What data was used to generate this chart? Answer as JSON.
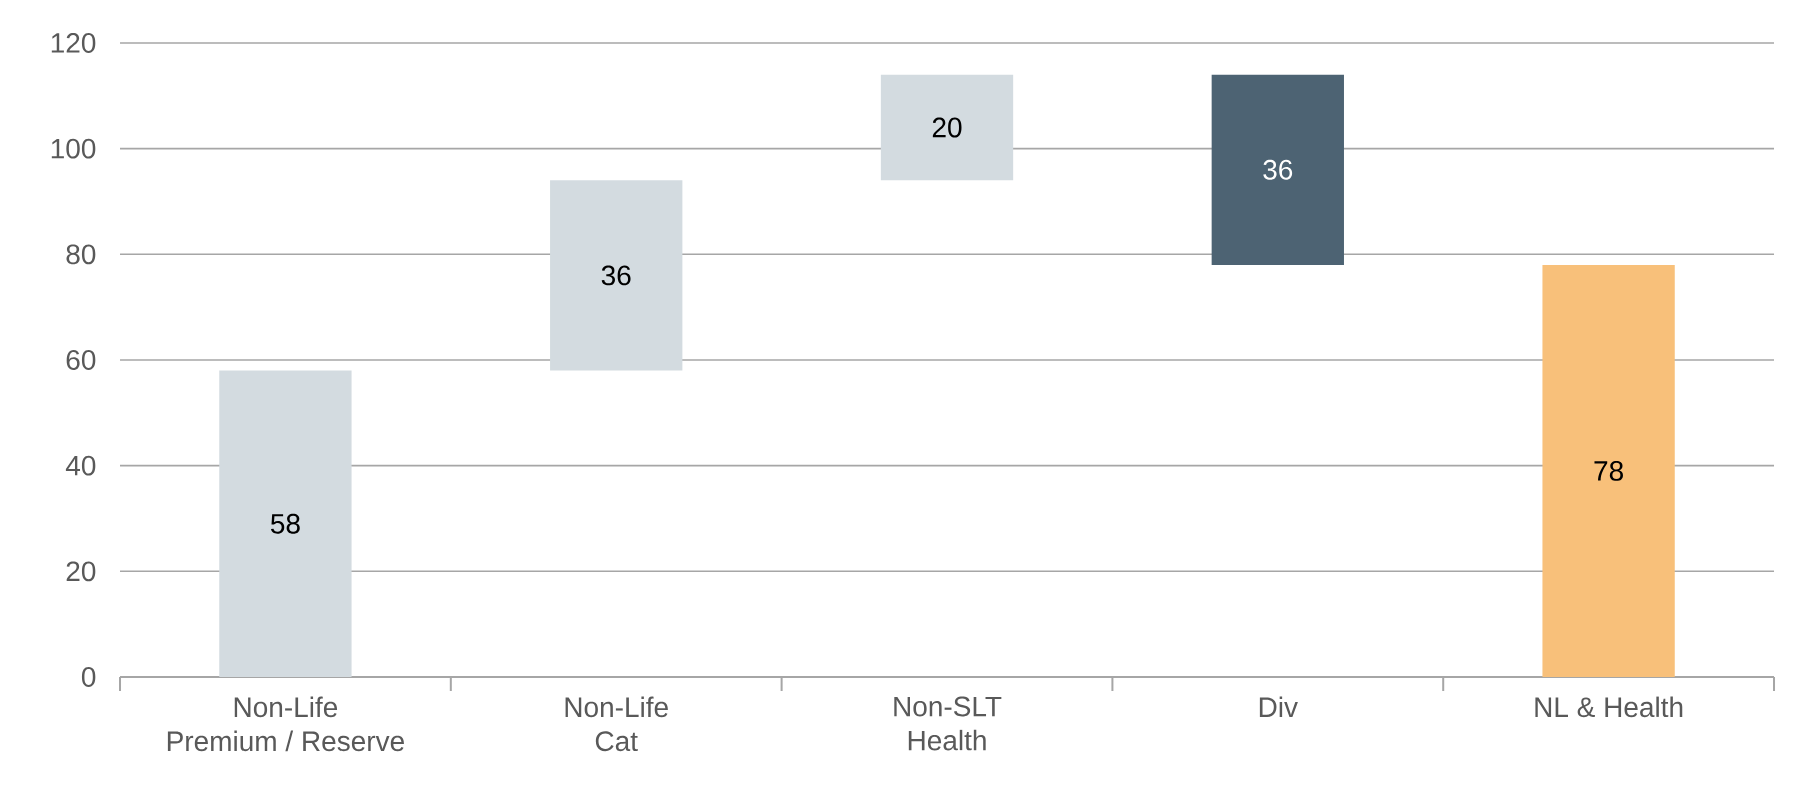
{
  "chart_data": {
    "type": "bar",
    "categories": [
      "Non-Life\nPremium / Reserve",
      "Non-Life\nCat",
      "Non-SLT\nHealth",
      "Div",
      "NL & Health"
    ],
    "values": [
      58,
      36,
      20,
      36,
      78
    ],
    "base": [
      0,
      58,
      94,
      78,
      0
    ],
    "colors": [
      "#d3dbe0",
      "#d3dbe0",
      "#d3dbe0",
      "#4d6373",
      "#f8c07a"
    ],
    "data_labels": true,
    "ylim": [
      0,
      120
    ],
    "yticks": [
      0,
      20,
      40,
      60,
      80,
      100,
      120
    ],
    "grid": "y"
  }
}
